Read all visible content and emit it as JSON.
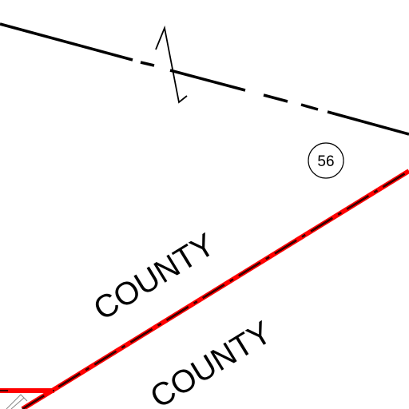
{
  "map": {
    "labels": {
      "upper": "COUNTY",
      "lower": "COUNTY"
    },
    "parcel_number": "56",
    "colors": {
      "boundary_line": "#000000",
      "county_line": "#ff0000",
      "background": "#ffffff"
    }
  }
}
